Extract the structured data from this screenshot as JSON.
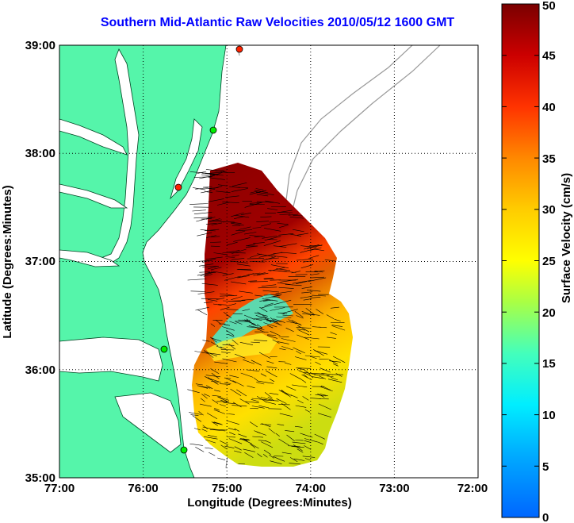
{
  "title": "Southern Mid-Atlantic Raw Velocities 2010/05/12 1600 GMT",
  "axes": {
    "xlabel": "Longitude (Degrees:Minutes)",
    "ylabel": "Latitude (Degrees:Minutes)",
    "x_ticks": [
      "77:00",
      "76:00",
      "75:00",
      "74:00",
      "73:00",
      "72:00"
    ],
    "y_ticks": [
      "39:00",
      "38:00",
      "37:00",
      "36:00",
      "35:00"
    ]
  },
  "colorbar": {
    "label": "Surface Velocity (cm/s)",
    "ticks": [
      "50",
      "45",
      "40",
      "35",
      "30",
      "25",
      "20",
      "15",
      "10",
      "5",
      "0"
    ],
    "range": [
      0,
      50
    ]
  },
  "colors": {
    "land": "#55f5aa",
    "title": "#0000ff",
    "station_green": "#00ee00",
    "station_red": "#ff2200"
  },
  "icons": [
    "station-marker-icon"
  ]
}
